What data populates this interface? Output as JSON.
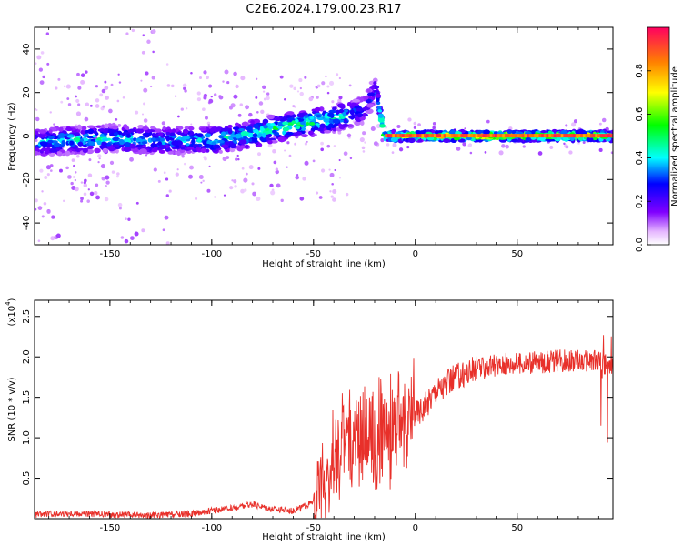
{
  "title": "C2E6.2024.179.00.23.R17",
  "chart_data": [
    {
      "type": "heatmap",
      "xlabel": "Height of straight line (km)",
      "ylabel": "Frequency (Hz)",
      "xlim": [
        -187,
        97
      ],
      "ylim": [
        -50,
        50
      ],
      "xticks": [
        -150,
        -100,
        -50,
        0,
        50
      ],
      "yticks": [
        -40,
        -20,
        0,
        20,
        40
      ],
      "colorbar": {
        "label": "Normalized spectral amplitude",
        "range": [
          0,
          1
        ],
        "ticks": [
          "0.0",
          "0.2",
          "0.4",
          "0.6",
          "0.8"
        ],
        "colormap": "rainbow"
      },
      "ridge": [
        {
          "x": -185,
          "freq": -3,
          "amp": 0.45
        },
        {
          "x": -170,
          "freq": -2,
          "amp": 0.5
        },
        {
          "x": -150,
          "freq": -1,
          "amp": 0.5
        },
        {
          "x": -125,
          "freq": -2,
          "amp": 0.45
        },
        {
          "x": -100,
          "freq": -2,
          "amp": 0.5
        },
        {
          "x": -80,
          "freq": 1,
          "amp": 0.55
        },
        {
          "x": -60,
          "freq": 5,
          "amp": 0.6
        },
        {
          "x": -40,
          "freq": 8,
          "amp": 0.55
        },
        {
          "x": -25,
          "freq": 12,
          "amp": 0.35
        },
        {
          "x": -20,
          "freq": 22,
          "amp": 0.3
        },
        {
          "x": -15,
          "freq": 0,
          "amp": 0.85
        },
        {
          "x": 0,
          "freq": 0,
          "amp": 0.9
        },
        {
          "x": 50,
          "freq": 0,
          "amp": 0.9
        },
        {
          "x": 95,
          "freq": 0,
          "amp": 0.85
        }
      ]
    },
    {
      "type": "line",
      "xlabel": "Height of straight line (km)",
      "ylabel": "SNR (10 * v/v)",
      "yscale_label": "(x10",
      "yscale_exp": "4",
      "xlim": [
        -187,
        97
      ],
      "ylim": [
        0,
        2.7
      ],
      "xticks": [
        -150,
        -100,
        -50,
        0,
        50
      ],
      "yticks": [
        0.5,
        1.0,
        1.5,
        2.0,
        2.5
      ],
      "ytick_labels": [
        "0.5",
        "1.0",
        "1.5",
        "2.0",
        "2.5"
      ],
      "series": [
        {
          "color": "#e8302a",
          "points": [
            [
              -187,
              0.05
            ],
            [
              -170,
              0.07
            ],
            [
              -150,
              0.05
            ],
            [
              -130,
              0.04
            ],
            [
              -110,
              0.06
            ],
            [
              -100,
              0.1
            ],
            [
              -90,
              0.13
            ],
            [
              -80,
              0.18
            ],
            [
              -70,
              0.12
            ],
            [
              -60,
              0.1
            ],
            [
              -50,
              0.2
            ],
            [
              -45,
              0.4
            ],
            [
              -40,
              0.7
            ],
            [
              -35,
              0.9
            ],
            [
              -30,
              1.0
            ],
            [
              -25,
              1.1
            ],
            [
              -20,
              1.0
            ],
            [
              -15,
              1.0
            ],
            [
              -10,
              1.15
            ],
            [
              -5,
              1.2
            ],
            [
              0,
              1.3
            ],
            [
              5,
              1.4
            ],
            [
              10,
              1.6
            ],
            [
              15,
              1.65
            ],
            [
              20,
              1.75
            ],
            [
              25,
              1.8
            ],
            [
              30,
              1.85
            ],
            [
              40,
              1.9
            ],
            [
              50,
              1.92
            ],
            [
              60,
              1.93
            ],
            [
              70,
              1.95
            ],
            [
              80,
              1.95
            ],
            [
              90,
              1.95
            ],
            [
              95,
              1.9
            ]
          ]
        }
      ]
    }
  ]
}
